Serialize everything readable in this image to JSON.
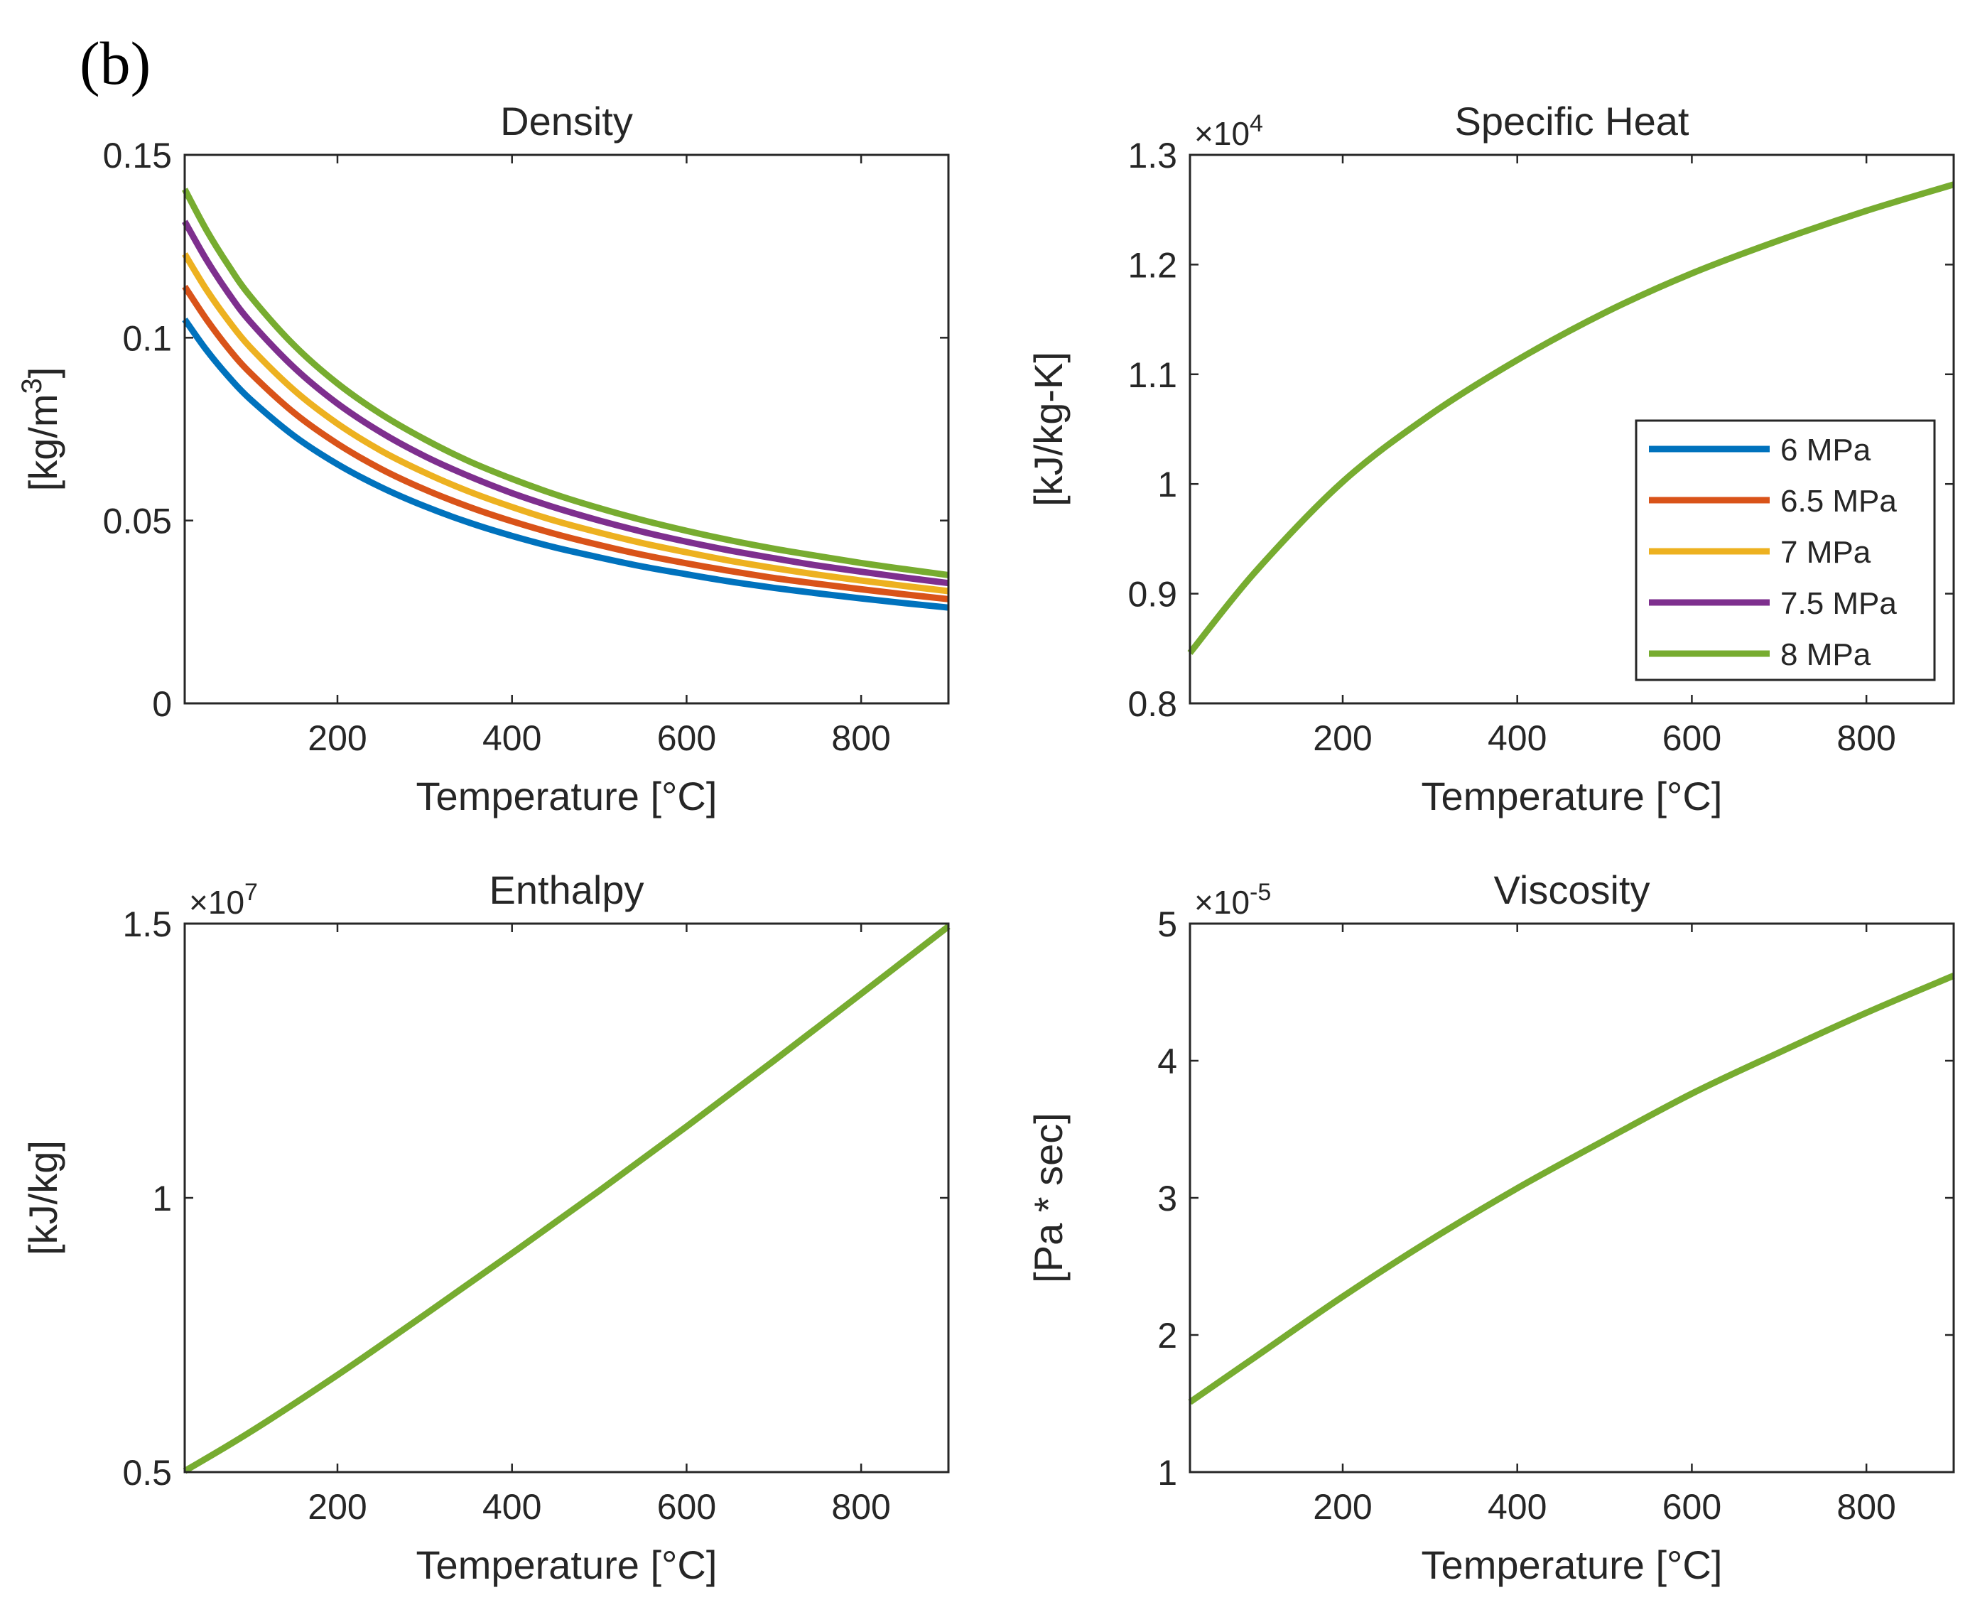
{
  "panel_label": "(b)",
  "chart_data": [
    {
      "type": "line",
      "title": "Density",
      "xlabel": "Temperature [°C]",
      "ylabel": "[kg/m3]",
      "xlim": [
        25,
        900
      ],
      "ylim": [
        0,
        0.15
      ],
      "xticks": [
        200,
        400,
        600,
        800
      ],
      "yticks": [
        0,
        0.05,
        0.1,
        0.15
      ],
      "ytick_labels": [
        "0",
        "0.05",
        "0.1",
        "0.15"
      ],
      "exponent": "",
      "x": [
        25,
        50,
        75,
        100,
        150,
        200,
        250,
        300,
        350,
        400,
        450,
        500,
        550,
        600,
        650,
        700,
        750,
        800,
        850,
        900
      ],
      "series": [
        {
          "name": "6 MPa",
          "color": "#0072BD",
          "values": [
            0.105,
            0.0966,
            0.0894,
            0.0832,
            0.0732,
            0.0654,
            0.0591,
            0.0539,
            0.0495,
            0.0458,
            0.0426,
            0.0399,
            0.0374,
            0.0353,
            0.0333,
            0.0316,
            0.0301,
            0.0287,
            0.0274,
            0.0262
          ]
        },
        {
          "name": "6.5 MPa",
          "color": "#D95319",
          "values": [
            0.114,
            0.105,
            0.0971,
            0.0904,
            0.0795,
            0.071,
            0.0641,
            0.0585,
            0.0538,
            0.0498,
            0.0463,
            0.0433,
            0.0406,
            0.0383,
            0.0362,
            0.0343,
            0.0327,
            0.0312,
            0.0298,
            0.0285
          ]
        },
        {
          "name": "7 MPa",
          "color": "#EDB120",
          "values": [
            0.1229,
            0.1131,
            0.1047,
            0.0974,
            0.0857,
            0.0765,
            0.0691,
            0.0631,
            0.058,
            0.0537,
            0.0499,
            0.0467,
            0.0438,
            0.0413,
            0.039,
            0.037,
            0.0352,
            0.0336,
            0.0321,
            0.0307
          ]
        },
        {
          "name": "7.5 MPa",
          "color": "#7E2F8E",
          "values": [
            0.1318,
            0.1213,
            0.1122,
            0.1044,
            0.0919,
            0.082,
            0.0741,
            0.0676,
            0.0622,
            0.0575,
            0.0535,
            0.05,
            0.0469,
            0.0442,
            0.0418,
            0.0397,
            0.0377,
            0.036,
            0.0344,
            0.0329
          ]
        },
        {
          "name": "8 MPa",
          "color": "#77AC30",
          "values": [
            0.1406,
            0.1294,
            0.1198,
            0.1114,
            0.098,
            0.0875,
            0.0791,
            0.0722,
            0.0663,
            0.0614,
            0.0571,
            0.0534,
            0.0501,
            0.0472,
            0.0446,
            0.0423,
            0.0403,
            0.0384,
            0.0367,
            0.0351
          ]
        }
      ]
    },
    {
      "type": "line",
      "title": "Specific Heat",
      "xlabel": "Temperature [°C]",
      "ylabel": "[kJ/kg-K]",
      "xlim": [
        25,
        900
      ],
      "ylim": [
        0.8,
        1.3
      ],
      "xticks": [
        200,
        400,
        600,
        800
      ],
      "yticks": [
        0.8,
        0.9,
        1,
        1.1,
        1.2,
        1.3
      ],
      "ytick_labels": [
        "0.8",
        "0.9",
        "1",
        "1.1",
        "1.2",
        "1.3"
      ],
      "exponent": "×10",
      "exponent_power": "4",
      "x": [
        25,
        100,
        200,
        300,
        400,
        500,
        600,
        700,
        800,
        900
      ],
      "series": [
        {
          "name": "8 MPa",
          "color": "#77AC30",
          "values": [
            0.846,
            0.92,
            1.002,
            1.063,
            1.113,
            1.156,
            1.192,
            1.222,
            1.249,
            1.273
          ]
        }
      ]
    },
    {
      "type": "line",
      "title": "Enthalpy",
      "xlabel": "Temperature [°C]",
      "ylabel": "[kJ/kg]",
      "xlim": [
        25,
        900
      ],
      "ylim": [
        0.5,
        1.5
      ],
      "xticks": [
        200,
        400,
        600,
        800
      ],
      "yticks": [
        0.5,
        1,
        1.5
      ],
      "ytick_labels": [
        "0.5",
        "1",
        "1.5"
      ],
      "exponent": "×10",
      "exponent_power": "7",
      "x": [
        25,
        100,
        200,
        300,
        400,
        500,
        600,
        700,
        800,
        900
      ],
      "series": [
        {
          "name": "8 MPa",
          "color": "#77AC30",
          "values": [
            0.502,
            0.573,
            0.677,
            0.787,
            0.899,
            1.013,
            1.13,
            1.25,
            1.372,
            1.495
          ]
        }
      ]
    },
    {
      "type": "line",
      "title": "Viscosity",
      "xlabel": "Temperature [°C]",
      "ylabel": "[Pa * sec]",
      "xlim": [
        25,
        900
      ],
      "ylim": [
        1,
        5
      ],
      "xticks": [
        200,
        400,
        600,
        800
      ],
      "yticks": [
        1,
        2,
        3,
        4,
        5
      ],
      "ytick_labels": [
        "1",
        "2",
        "3",
        "4",
        "5"
      ],
      "exponent": "×10",
      "exponent_power": "-5",
      "x": [
        25,
        100,
        200,
        300,
        400,
        500,
        600,
        700,
        800,
        900
      ],
      "series": [
        {
          "name": "8 MPa",
          "color": "#77AC30",
          "values": [
            1.51,
            1.84,
            2.28,
            2.69,
            3.07,
            3.42,
            3.76,
            4.06,
            4.35,
            4.62
          ]
        }
      ]
    }
  ],
  "legend": {
    "entries": [
      {
        "label": "6 MPa",
        "color": "#0072BD"
      },
      {
        "label": "6.5 MPa",
        "color": "#D95319"
      },
      {
        "label": "7 MPa",
        "color": "#EDB120"
      },
      {
        "label": "7.5 MPa",
        "color": "#7E2F8E"
      },
      {
        "label": "8 MPa",
        "color": "#77AC30"
      }
    ]
  }
}
